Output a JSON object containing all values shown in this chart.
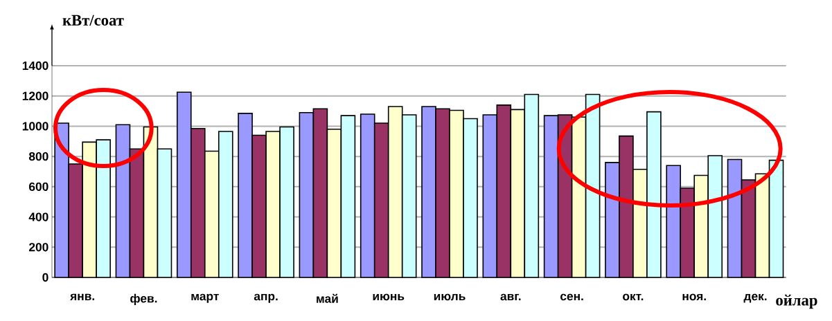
{
  "chart_data": {
    "type": "bar",
    "xlabel": "ойлар",
    "ylabel": "кВт/соат",
    "categories": [
      "янв.",
      "фев.",
      "март",
      "апр.",
      "май",
      "июнь",
      "июль",
      "авг.",
      "сен.",
      "окт.",
      "ноя.",
      "дек."
    ],
    "series": [
      {
        "color": "#9999ff",
        "values": [
          1020,
          1010,
          1225,
          1085,
          1090,
          1080,
          1130,
          1075,
          1070,
          760,
          740,
          780
        ]
      },
      {
        "color": "#993366",
        "values": [
          750,
          850,
          985,
          940,
          1115,
          1020,
          1115,
          1140,
          1075,
          935,
          590,
          645
        ]
      },
      {
        "color": "#ffffcc",
        "values": [
          895,
          995,
          835,
          965,
          980,
          1130,
          1105,
          1110,
          1060,
          715,
          675,
          685
        ]
      },
      {
        "color": "#ccffff",
        "values": [
          910,
          850,
          965,
          995,
          1070,
          1075,
          1050,
          1210,
          1210,
          1095,
          805,
          775
        ]
      }
    ],
    "ylim": [
      0,
      1400
    ],
    "yticks": [
      0,
      200,
      400,
      600,
      800,
      1000,
      1200,
      1400
    ],
    "grid": "y"
  }
}
